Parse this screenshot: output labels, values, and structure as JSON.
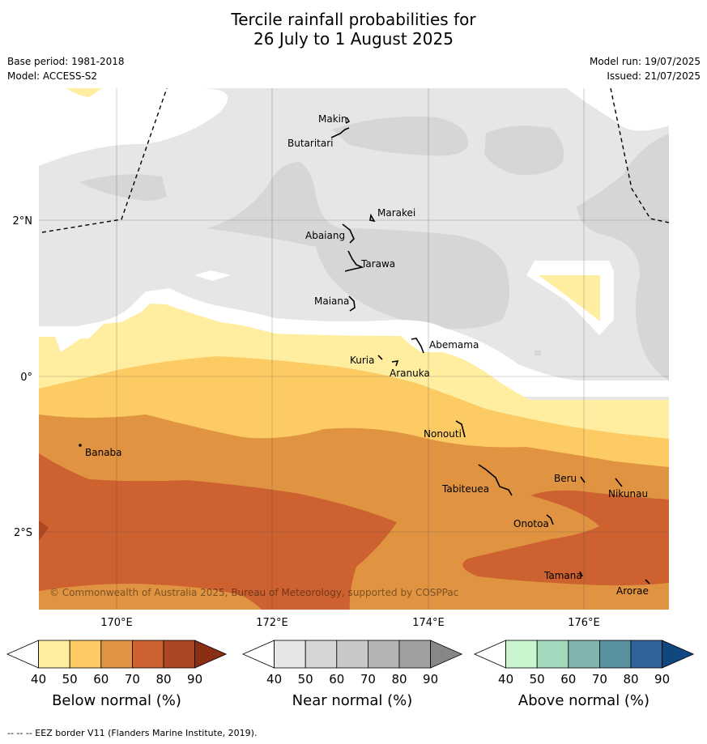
{
  "title_line1": "Tercile rainfall probabilities for",
  "title_line2": "26 July to 1 August 2025",
  "base_period": "Base period: 1981-2018",
  "model": "Model: ACCESS-S2",
  "model_run": "Model run: 19/07/2025",
  "issued": "Issued: 21/07/2025",
  "map": {
    "lon_labels": [
      "170°E",
      "172°E",
      "174°E",
      "176°E"
    ],
    "lat_labels": [
      "2°N",
      "0°",
      "2°S"
    ],
    "places": [
      "Makin",
      "Butaritari",
      "Marakei",
      "Abaiang",
      "Tarawa",
      "Maiana",
      "Abemama",
      "Kuria",
      "Aranuka",
      "Nonouti",
      "Banaba",
      "Beru",
      "Nikunau",
      "Tabiteuea",
      "Onotoa",
      "Tamana",
      "Arorae"
    ],
    "copyright": "© Commonwealth of Australia 2025, Bureau of Meteorology, supported by COSPPac"
  },
  "colorbars": {
    "ticks": [
      "40",
      "50",
      "60",
      "70",
      "80",
      "90"
    ],
    "below": {
      "title": "Below normal (%)",
      "colors": [
        "#ffffff",
        "#ffeda0",
        "#fdcb63",
        "#e09341",
        "#cd6230",
        "#ad4623",
        "#8a2f14"
      ]
    },
    "near": {
      "title": "Near normal (%)",
      "colors": [
        "#ffffff",
        "#e6e6e6",
        "#d6d6d6",
        "#c8c8c8",
        "#b4b4b4",
        "#a0a0a0",
        "#878787"
      ]
    },
    "above": {
      "title": "Above normal (%)",
      "colors": [
        "#ffffff",
        "#c9f5cf",
        "#a2d8bc",
        "#7fb3b0",
        "#5890a0",
        "#2f6399",
        "#12467f"
      ]
    }
  },
  "footnote": "--  --  -- EEZ border V11 (Flanders Marine Institute, 2019)."
}
